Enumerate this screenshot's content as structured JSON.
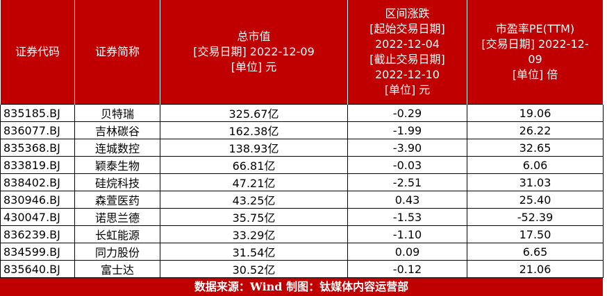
{
  "table": {
    "header": [
      [
        "证券代码"
      ],
      [
        "证券简称"
      ],
      [
        "总市值",
        "[交易日期] 2022-12-09",
        "[单位] 元"
      ],
      [
        "区间涨跌",
        "[起始交易日期]",
        "2022-12-04",
        "[截止交易日期]",
        "2022-12-10",
        "[单位] 元"
      ],
      [
        "市盈率PE(TTM)",
        "[交易日期] 2022-12-",
        "09",
        "[单位] 倍"
      ]
    ],
    "rows": [
      [
        "835185.BJ",
        "贝特瑞",
        "325.67亿",
        "-0.29",
        "19.06"
      ],
      [
        "836077.BJ",
        "吉林碳谷",
        "162.38亿",
        "-1.99",
        "26.22"
      ],
      [
        "835368.BJ",
        "连城数控",
        "138.93亿",
        "-3.90",
        "32.65"
      ],
      [
        "833819.BJ",
        "颖泰生物",
        "66.81亿",
        "-0.03",
        "6.06"
      ],
      [
        "838402.BJ",
        "硅烷科技",
        "47.21亿",
        "-2.51",
        "31.03"
      ],
      [
        "830946.BJ",
        "森萱医药",
        "43.25亿",
        "0.43",
        "25.40"
      ],
      [
        "430047.BJ",
        "诺思兰德",
        "35.75亿",
        "-1.53",
        "-52.39"
      ],
      [
        "836239.BJ",
        "长虹能源",
        "33.29亿",
        "-1.10",
        "17.50"
      ],
      [
        "834599.BJ",
        "同力股份",
        "31.54亿",
        "0.09",
        "6.65"
      ],
      [
        "835640.BJ",
        "富士达",
        "30.52亿",
        "-0.12",
        "21.06"
      ]
    ]
  },
  "footer": "数据来源：Wind 制图：钛媒体内容运营部"
}
